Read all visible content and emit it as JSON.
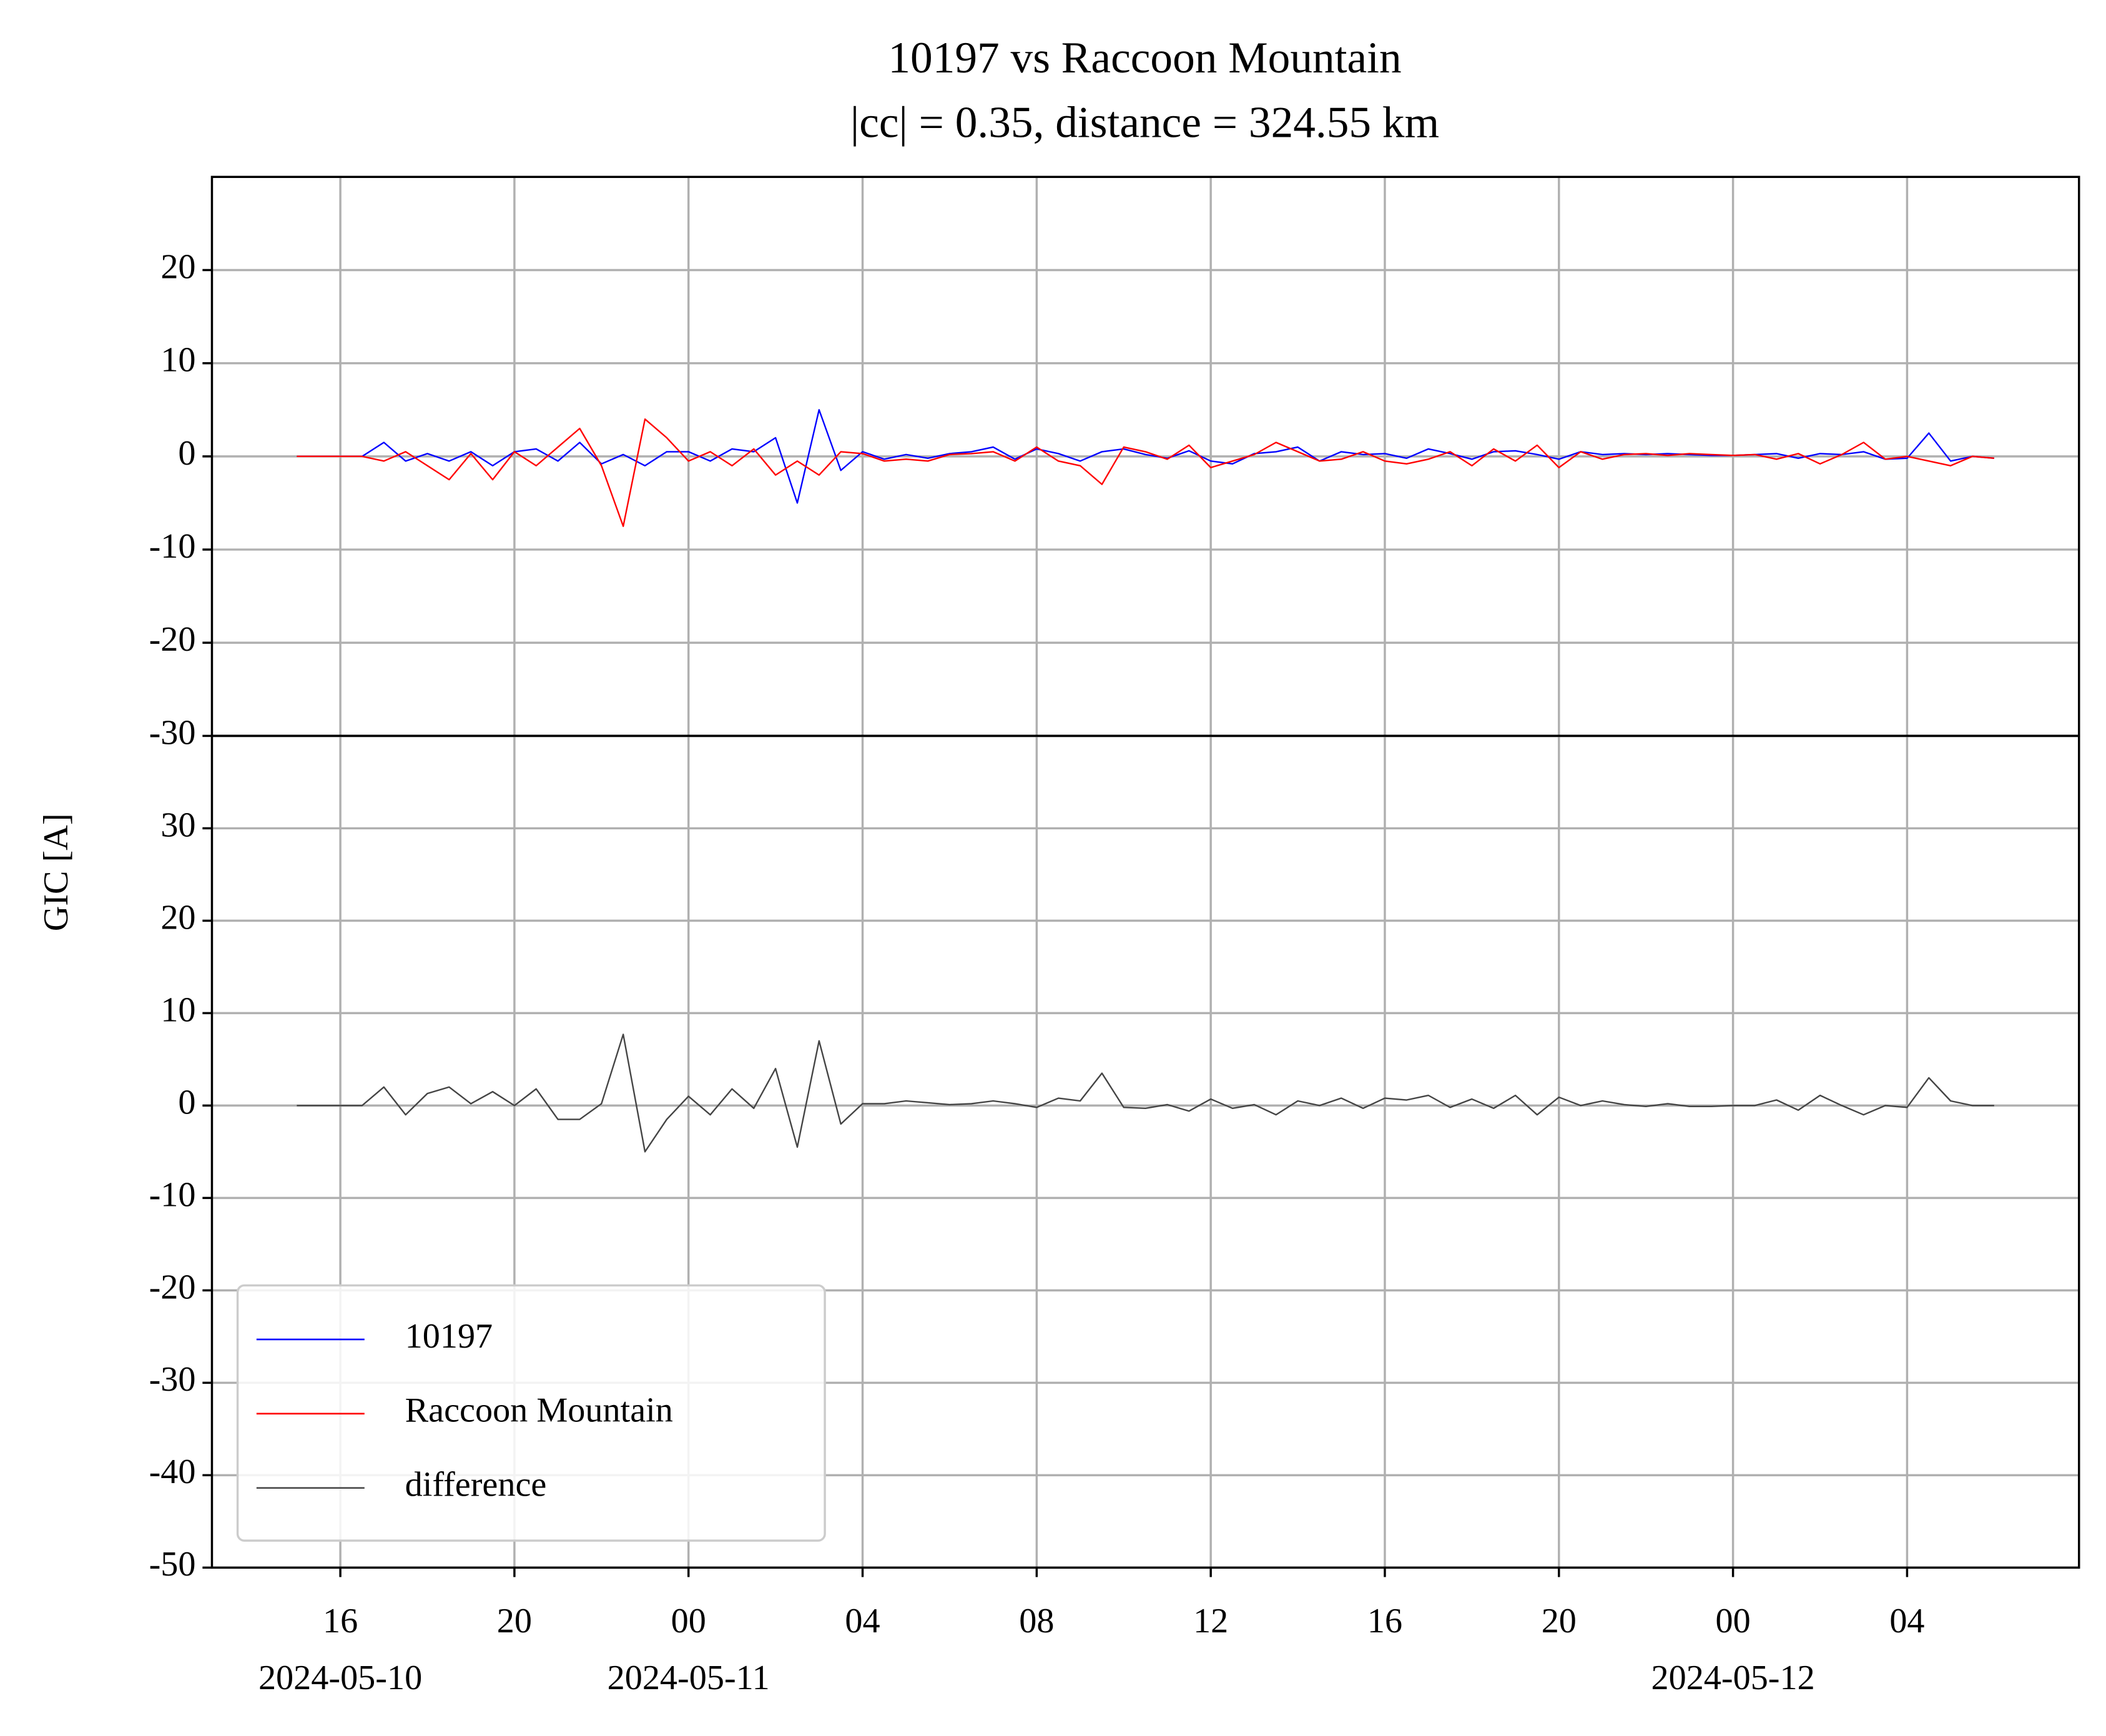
{
  "chart_data": [
    {
      "type": "line",
      "title": "10197 vs Raccoon Mountain",
      "subtitle": "|cc| = 0.35, distance = 324.55 km",
      "x": [
        "2024-05-10 15:00",
        "2024-05-10 15:30",
        "2024-05-10 16:00",
        "2024-05-10 16:30",
        "2024-05-10 17:00",
        "2024-05-10 17:30",
        "2024-05-10 18:00",
        "2024-05-10 18:30",
        "2024-05-10 19:00",
        "2024-05-10 19:30",
        "2024-05-10 20:00",
        "2024-05-10 20:30",
        "2024-05-10 21:00",
        "2024-05-10 21:30",
        "2024-05-10 22:00",
        "2024-05-10 22:30",
        "2024-05-10 23:00",
        "2024-05-10 23:30",
        "2024-05-11 00:00",
        "2024-05-11 00:30",
        "2024-05-11 01:00",
        "2024-05-11 01:30",
        "2024-05-11 02:00",
        "2024-05-11 02:30",
        "2024-05-11 03:00",
        "2024-05-11 03:30",
        "2024-05-11 04:00",
        "2024-05-11 04:30",
        "2024-05-11 05:00",
        "2024-05-11 05:30",
        "2024-05-11 06:00",
        "2024-05-11 06:30",
        "2024-05-11 07:00",
        "2024-05-11 07:30",
        "2024-05-11 08:00",
        "2024-05-11 08:30",
        "2024-05-11 09:00",
        "2024-05-11 09:30",
        "2024-05-11 10:00",
        "2024-05-11 10:30",
        "2024-05-11 11:00",
        "2024-05-11 11:30",
        "2024-05-11 12:00",
        "2024-05-11 12:30",
        "2024-05-11 13:00",
        "2024-05-11 13:30",
        "2024-05-11 14:00",
        "2024-05-11 14:30",
        "2024-05-11 15:00",
        "2024-05-11 15:30",
        "2024-05-11 16:00",
        "2024-05-11 16:30",
        "2024-05-11 17:00",
        "2024-05-11 17:30",
        "2024-05-11 18:00",
        "2024-05-11 18:30",
        "2024-05-11 19:00",
        "2024-05-11 19:30",
        "2024-05-11 20:00",
        "2024-05-11 20:30",
        "2024-05-11 21:00",
        "2024-05-11 21:30",
        "2024-05-11 22:00",
        "2024-05-11 22:30",
        "2024-05-11 23:00",
        "2024-05-11 23:30",
        "2024-05-12 00:00",
        "2024-05-12 00:30",
        "2024-05-12 01:00",
        "2024-05-12 01:30",
        "2024-05-12 02:00",
        "2024-05-12 02:30",
        "2024-05-12 03:00",
        "2024-05-12 03:30",
        "2024-05-12 04:00",
        "2024-05-12 04:30",
        "2024-05-12 05:00",
        "2024-05-12 05:30",
        "2024-05-12 06:00"
      ],
      "series": [
        {
          "name": "10197",
          "color": "#0000ff",
          "values": [
            0,
            0,
            0,
            0,
            1.5,
            -0.5,
            0.3,
            -0.5,
            0.5,
            -1,
            0.5,
            0.8,
            -0.5,
            1.5,
            -0.8,
            0.2,
            -1,
            0.5,
            0.5,
            -0.5,
            0.8,
            0.5,
            2,
            -5,
            5,
            -1.5,
            0.5,
            -0.3,
            0.2,
            -0.2,
            0.3,
            0.5,
            1,
            -0.3,
            0.8,
            0.3,
            -0.5,
            0.5,
            0.8,
            0.2,
            -0.2,
            0.6,
            -0.5,
            -0.8,
            0.3,
            0.5,
            1,
            -0.5,
            0.5,
            0.2,
            0.3,
            -0.2,
            0.8,
            0.3,
            -0.3,
            0.5,
            0.6,
            0.2,
            -0.3,
            0.5,
            0.2,
            0.3,
            0.2,
            0.3,
            0.2,
            0.1,
            0.1,
            0.2,
            0.3,
            -0.2,
            0.3,
            0.2,
            0.5,
            -0.3,
            -0.2,
            2.5,
            -0.5,
            0,
            -0.2
          ]
        },
        {
          "name": "Raccoon Mountain",
          "color": "#ff0000",
          "values": [
            0,
            0,
            0,
            0,
            -0.5,
            0.5,
            -1,
            -2.5,
            0.3,
            -2.5,
            0.5,
            -1,
            1,
            3,
            -1,
            -7.5,
            4,
            2,
            -0.5,
            0.5,
            -1,
            0.8,
            -2,
            -0.5,
            -2,
            0.5,
            0.3,
            -0.5,
            -0.3,
            -0.5,
            0.2,
            0.3,
            0.5,
            -0.5,
            1,
            -0.5,
            -1,
            -3,
            1,
            0.5,
            -0.3,
            1.2,
            -1.2,
            -0.5,
            0.2,
            1.5,
            0.5,
            -0.5,
            -0.3,
            0.5,
            -0.5,
            -0.8,
            -0.3,
            0.5,
            -1,
            0.8,
            -0.5,
            1.2,
            -1.2,
            0.5,
            -0.3,
            0.2,
            0.3,
            0.1,
            0.3,
            0.2,
            0.1,
            0.2,
            -0.3,
            0.3,
            -0.8,
            0.2,
            1.5,
            -0.3,
            0,
            -0.5,
            -1,
            0,
            -0.2
          ]
        }
      ],
      "xlim": [
        "2024-05-10 13:03",
        "2024-05-12 07:57"
      ],
      "ylim": [
        -30,
        30
      ],
      "yticks": [
        -30,
        -20,
        -10,
        0,
        10,
        20
      ],
      "grid": true
    },
    {
      "type": "line",
      "ylabel": "GIC [A]",
      "x": [
        "2024-05-10 15:00",
        "2024-05-10 15:30",
        "2024-05-10 16:00",
        "2024-05-10 16:30",
        "2024-05-10 17:00",
        "2024-05-10 17:30",
        "2024-05-10 18:00",
        "2024-05-10 18:30",
        "2024-05-10 19:00",
        "2024-05-10 19:30",
        "2024-05-10 20:00",
        "2024-05-10 20:30",
        "2024-05-10 21:00",
        "2024-05-10 21:30",
        "2024-05-10 22:00",
        "2024-05-10 22:30",
        "2024-05-10 23:00",
        "2024-05-10 23:30",
        "2024-05-11 00:00",
        "2024-05-11 00:30",
        "2024-05-11 01:00",
        "2024-05-11 01:30",
        "2024-05-11 02:00",
        "2024-05-11 02:30",
        "2024-05-11 03:00",
        "2024-05-11 03:30",
        "2024-05-11 04:00",
        "2024-05-11 04:30",
        "2024-05-11 05:00",
        "2024-05-11 05:30",
        "2024-05-11 06:00",
        "2024-05-11 06:30",
        "2024-05-11 07:00",
        "2024-05-11 07:30",
        "2024-05-11 08:00",
        "2024-05-11 08:30",
        "2024-05-11 09:00",
        "2024-05-11 09:30",
        "2024-05-11 10:00",
        "2024-05-11 10:30",
        "2024-05-11 11:00",
        "2024-05-11 11:30",
        "2024-05-11 12:00",
        "2024-05-11 12:30",
        "2024-05-11 13:00",
        "2024-05-11 13:30",
        "2024-05-11 14:00",
        "2024-05-11 14:30",
        "2024-05-11 15:00",
        "2024-05-11 15:30",
        "2024-05-11 16:00",
        "2024-05-11 16:30",
        "2024-05-11 17:00",
        "2024-05-11 17:30",
        "2024-05-11 18:00",
        "2024-05-11 18:30",
        "2024-05-11 19:00",
        "2024-05-11 19:30",
        "2024-05-11 20:00",
        "2024-05-11 20:30",
        "2024-05-11 21:00",
        "2024-05-11 21:30",
        "2024-05-11 22:00",
        "2024-05-11 22:30",
        "2024-05-11 23:00",
        "2024-05-11 23:30",
        "2024-05-12 00:00",
        "2024-05-12 00:30",
        "2024-05-12 01:00",
        "2024-05-12 01:30",
        "2024-05-12 02:00",
        "2024-05-12 02:30",
        "2024-05-12 03:00",
        "2024-05-12 03:30",
        "2024-05-12 04:00",
        "2024-05-12 04:30",
        "2024-05-12 05:00",
        "2024-05-12 05:30",
        "2024-05-12 06:00"
      ],
      "series": [
        {
          "name": "difference",
          "color": "#444444",
          "values": [
            0,
            0,
            0,
            0,
            2,
            -1,
            1.3,
            2,
            0.2,
            1.5,
            0,
            1.8,
            -1.5,
            -1.5,
            0.2,
            7.7,
            -5,
            -1.5,
            1,
            -1,
            1.8,
            -0.3,
            4,
            -4.5,
            7,
            -2,
            0.2,
            0.2,
            0.5,
            0.3,
            0.1,
            0.2,
            0.5,
            0.2,
            -0.2,
            0.8,
            0.5,
            3.5,
            -0.2,
            -0.3,
            0.1,
            -0.6,
            0.7,
            -0.3,
            0.1,
            -1,
            0.5,
            0,
            0.8,
            -0.3,
            0.8,
            0.6,
            1.1,
            -0.2,
            0.7,
            -0.3,
            1.1,
            -1,
            0.9,
            0,
            0.5,
            0.1,
            -0.1,
            0.2,
            -0.1,
            -0.1,
            0,
            0,
            0.6,
            -0.5,
            1.1,
            0,
            -1,
            0,
            -0.2,
            3,
            0.5,
            0,
            0
          ]
        }
      ],
      "xlim": [
        "2024-05-10 13:03",
        "2024-05-12 07:57"
      ],
      "xticks": [
        {
          "value": "2024-05-10 16:00",
          "label": "16"
        },
        {
          "value": "2024-05-10 20:00",
          "label": "20"
        },
        {
          "value": "2024-05-11 00:00",
          "label": "00"
        },
        {
          "value": "2024-05-11 04:00",
          "label": "04"
        },
        {
          "value": "2024-05-11 08:00",
          "label": "08"
        },
        {
          "value": "2024-05-11 12:00",
          "label": "12"
        },
        {
          "value": "2024-05-11 16:00",
          "label": "16"
        },
        {
          "value": "2024-05-11 20:00",
          "label": "20"
        },
        {
          "value": "2024-05-12 00:00",
          "label": "00"
        },
        {
          "value": "2024-05-12 04:00",
          "label": "04"
        }
      ],
      "xtick_dates": [
        {
          "value": "2024-05-10 16:00",
          "label": "2024-05-10"
        },
        {
          "value": "2024-05-11 00:00",
          "label": "2024-05-11"
        },
        {
          "value": "2024-05-12 00:00",
          "label": "2024-05-12"
        }
      ],
      "ylim": [
        -50,
        40
      ],
      "yticks": [
        -50,
        -40,
        -30,
        -20,
        -10,
        0,
        10,
        20,
        30
      ],
      "grid": true,
      "legend": "lower left"
    }
  ]
}
